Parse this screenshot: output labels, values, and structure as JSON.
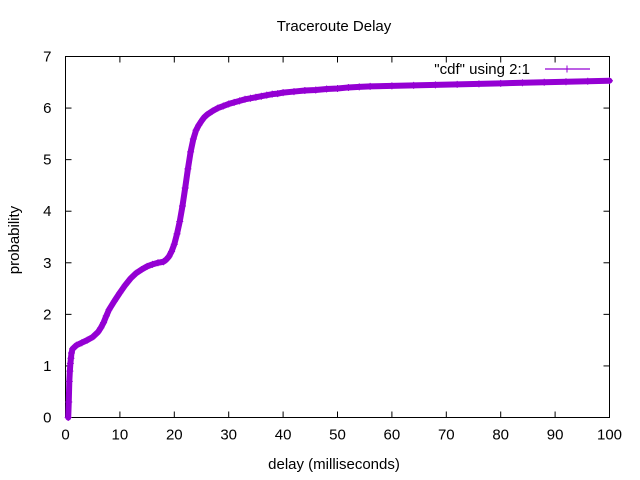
{
  "chart_data": {
    "type": "line",
    "title": "Traceroute Delay",
    "xlabel": "delay (milliseconds)",
    "ylabel": "probability",
    "xlim": [
      0,
      100
    ],
    "ylim": [
      0,
      7
    ],
    "x_ticks": [
      0,
      10,
      20,
      30,
      40,
      50,
      60,
      70,
      80,
      90,
      100
    ],
    "y_ticks": [
      0,
      1,
      2,
      3,
      4,
      5,
      6,
      7
    ],
    "grid": false,
    "legend_position": "top-right",
    "series": [
      {
        "name": "\"cdf\" using 2:1",
        "color": "#9400d3",
        "marker": "plus",
        "x": [
          0.5,
          0.6,
          0.7,
          0.8,
          0.9,
          1.0,
          1.1,
          1.3,
          2,
          3,
          4,
          5,
          6,
          6.5,
          7,
          7.5,
          8,
          9,
          10,
          11,
          12,
          13,
          14,
          15,
          16,
          17,
          18,
          18.5,
          19,
          19.5,
          20,
          20.5,
          21,
          21.5,
          22,
          22.5,
          23,
          23.5,
          24,
          24.5,
          25,
          25.5,
          26,
          27,
          28,
          29,
          30,
          31,
          32,
          33,
          34,
          35,
          36,
          37,
          38,
          39,
          40,
          42,
          44,
          46,
          48,
          50,
          52,
          54,
          56,
          60,
          64,
          68,
          72,
          76,
          80,
          84,
          88,
          92,
          96,
          100
        ],
        "y": [
          0.0,
          0.3,
          0.7,
          0.9,
          1.05,
          1.15,
          1.25,
          1.33,
          1.4,
          1.45,
          1.5,
          1.56,
          1.66,
          1.74,
          1.84,
          1.97,
          2.09,
          2.26,
          2.42,
          2.57,
          2.7,
          2.8,
          2.87,
          2.93,
          2.97,
          3.0,
          3.02,
          3.06,
          3.12,
          3.22,
          3.36,
          3.56,
          3.8,
          4.1,
          4.45,
          4.82,
          5.15,
          5.4,
          5.57,
          5.67,
          5.75,
          5.82,
          5.87,
          5.94,
          6.0,
          6.04,
          6.08,
          6.11,
          6.14,
          6.17,
          6.19,
          6.21,
          6.23,
          6.25,
          6.27,
          6.28,
          6.3,
          6.32,
          6.34,
          6.35,
          6.37,
          6.38,
          6.4,
          6.41,
          6.42,
          6.43,
          6.44,
          6.45,
          6.46,
          6.47,
          6.48,
          6.49,
          6.5,
          6.51,
          6.52,
          6.53
        ]
      }
    ]
  }
}
